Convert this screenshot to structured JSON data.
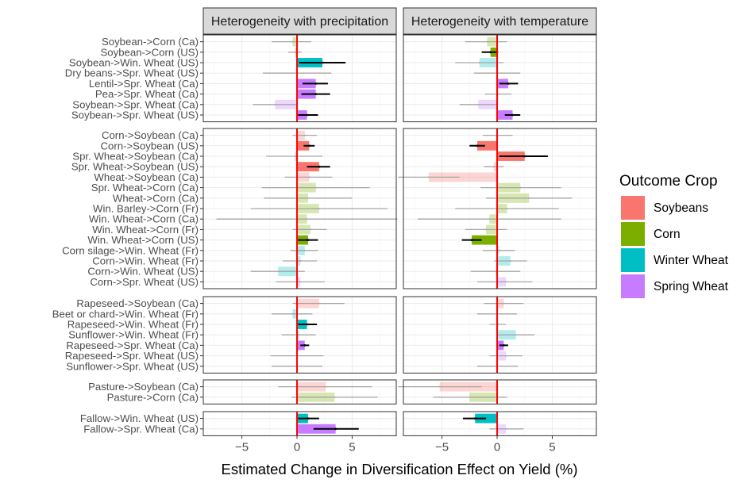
{
  "chart_data": {
    "type": "bar",
    "orientation": "horizontal",
    "facets": [
      "Heterogeneity with precipitation",
      "Heterogeneity with temperature"
    ],
    "xlabel": "Estimated Change in Diversification Effect on Yield (%)",
    "xlim": [
      -8.5,
      9.0
    ],
    "xticks": [
      -5,
      0,
      5
    ],
    "xtick_labels": [
      "−5",
      "0",
      "5"
    ],
    "reference_line_x": 0,
    "grid": true,
    "legend": {
      "title": "Outcome Crop",
      "placement": "right",
      "items": [
        {
          "label": "Soybeans",
          "color": "#F8766D"
        },
        {
          "label": "Corn",
          "color": "#7CAE00"
        },
        {
          "label": "Winter Wheat",
          "color": "#00BFC4"
        },
        {
          "label": "Spring Wheat",
          "color": "#C77CFF"
        }
      ]
    },
    "groups": [
      {
        "rows": [
          {
            "label": "Soybean->Corn (Ca)",
            "crop": "Corn",
            "precip": {
              "v": -0.4,
              "lo": -2.3,
              "hi": 1.3,
              "sig": false
            },
            "temp": {
              "v": -0.9,
              "lo": -2.9,
              "hi": 0.9,
              "sig": false
            }
          },
          {
            "label": "Soybean->Corn (US)",
            "crop": "Corn",
            "precip": {
              "v": -0.2,
              "lo": -0.8,
              "hi": 0.4,
              "sig": false
            },
            "temp": {
              "v": -0.6,
              "lo": -1.4,
              "hi": 0.1,
              "sig": true
            }
          },
          {
            "label": "Soybean->Win. Wheat (US)",
            "crop": "Winter Wheat",
            "precip": {
              "v": 2.3,
              "lo": 0.2,
              "hi": 4.4,
              "sig": true
            },
            "temp": {
              "v": -1.6,
              "lo": -3.8,
              "hi": 0.6,
              "sig": false
            }
          },
          {
            "label": "Dry beans->Spr. Wheat (US)",
            "crop": "Spring Wheat",
            "precip": {
              "v": 0.0,
              "lo": -3.1,
              "hi": 3.1,
              "sig": false
            },
            "temp": {
              "v": 0.0,
              "lo": -2.1,
              "hi": 2.1,
              "sig": false
            }
          },
          {
            "label": "Lentil->Spr. Wheat (Ca)",
            "crop": "Spring Wheat",
            "precip": {
              "v": 1.7,
              "lo": 0.5,
              "hi": 2.8,
              "sig": true
            },
            "temp": {
              "v": 1.0,
              "lo": 0.2,
              "hi": 1.9,
              "sig": true
            }
          },
          {
            "label": "Pea->Spr. Wheat (Ca)",
            "crop": "Spring Wheat",
            "precip": {
              "v": 1.7,
              "lo": 0.4,
              "hi": 3.0,
              "sig": true
            },
            "temp": {
              "v": 0.1,
              "lo": -1.1,
              "hi": 1.3,
              "sig": false
            }
          },
          {
            "label": "Soybean->Spr. Wheat (Ca)",
            "crop": "Spring Wheat",
            "precip": {
              "v": -2.0,
              "lo": -4.0,
              "hi": 0.0,
              "sig": false
            },
            "temp": {
              "v": -1.7,
              "lo": -3.4,
              "hi": 0.0,
              "sig": false
            }
          },
          {
            "label": "Soybean->Spr. Wheat (US)",
            "crop": "Spring Wheat",
            "precip": {
              "v": 0.9,
              "lo": 0.1,
              "hi": 1.9,
              "sig": true
            },
            "temp": {
              "v": 1.4,
              "lo": 0.7,
              "hi": 2.1,
              "sig": true
            }
          }
        ]
      },
      {
        "rows": [
          {
            "label": "Corn->Soybean (Ca)",
            "crop": "Soybeans",
            "precip": {
              "v": 0.7,
              "lo": -0.4,
              "hi": 1.8,
              "sig": false
            },
            "temp": {
              "v": 0.0,
              "lo": -1.3,
              "hi": 1.4,
              "sig": false
            }
          },
          {
            "label": "Corn->Soybean (US)",
            "crop": "Soybeans",
            "precip": {
              "v": 1.1,
              "lo": 0.6,
              "hi": 1.6,
              "sig": true
            },
            "temp": {
              "v": -1.8,
              "lo": -2.5,
              "hi": -1.1,
              "sig": true
            }
          },
          {
            "label": "Spr. Wheat->Soybean (Ca)",
            "crop": "Soybeans",
            "precip": {
              "v": -0.2,
              "lo": -2.8,
              "hi": 2.3,
              "sig": false
            },
            "temp": {
              "v": 2.5,
              "lo": 0.2,
              "hi": 4.6,
              "sig": true
            }
          },
          {
            "label": "Spr. Wheat->Soybean (US)",
            "crop": "Soybeans",
            "precip": {
              "v": 2.0,
              "lo": 0.9,
              "hi": 3.0,
              "sig": true
            },
            "temp": {
              "v": -0.3,
              "lo": -1.2,
              "hi": 0.6,
              "sig": false
            }
          },
          {
            "label": "Wheat->Soybean (Ca)",
            "crop": "Soybeans",
            "precip": {
              "v": 1.1,
              "lo": -1.1,
              "hi": 3.2,
              "sig": false
            },
            "temp": {
              "v": -6.2,
              "lo": -9.0,
              "hi": -3.4,
              "sig": false
            }
          },
          {
            "label": "Spr. Wheat->Corn (Ca)",
            "crop": "Corn",
            "precip": {
              "v": 1.7,
              "lo": -3.2,
              "hi": 6.6,
              "sig": false
            },
            "temp": {
              "v": 2.1,
              "lo": -1.5,
              "hi": 5.8,
              "sig": false
            }
          },
          {
            "label": "Wheat->Corn (Ca)",
            "crop": "Corn",
            "precip": {
              "v": 1.0,
              "lo": -3.0,
              "hi": 5.0,
              "sig": false
            },
            "temp": {
              "v": 2.9,
              "lo": -1.0,
              "hi": 6.8,
              "sig": false
            }
          },
          {
            "label": "Win. Barley->Corn (Fr)",
            "crop": "Corn",
            "precip": {
              "v": 2.0,
              "lo": -4.2,
              "hi": 8.2,
              "sig": false
            },
            "temp": {
              "v": 0.9,
              "lo": -3.8,
              "hi": 5.6,
              "sig": false
            }
          },
          {
            "label": "Win. Wheat->Corn (Ca)",
            "crop": "Corn",
            "precip": {
              "v": 0.9,
              "lo": -7.3,
              "hi": 9.1,
              "sig": false
            },
            "temp": {
              "v": -0.7,
              "lo": -7.2,
              "hi": 5.8,
              "sig": false
            }
          },
          {
            "label": "Win. Wheat->Corn (Fr)",
            "crop": "Corn",
            "precip": {
              "v": 1.2,
              "lo": -0.4,
              "hi": 2.7,
              "sig": false
            },
            "temp": {
              "v": -1.0,
              "lo": -2.9,
              "hi": 0.9,
              "sig": false
            }
          },
          {
            "label": "Win. Wheat->Corn (US)",
            "crop": "Corn",
            "precip": {
              "v": 1.0,
              "lo": 0.1,
              "hi": 1.9,
              "sig": true
            },
            "temp": {
              "v": -2.3,
              "lo": -3.2,
              "hi": -1.4,
              "sig": true
            }
          },
          {
            "label": "Corn silage->Win. Wheat (Fr)",
            "crop": "Winter Wheat",
            "precip": {
              "v": 0.7,
              "lo": -0.6,
              "hi": 1.9,
              "sig": false
            },
            "temp": {
              "v": 0.2,
              "lo": -1.3,
              "hi": 1.6,
              "sig": false
            }
          },
          {
            "label": "Corn->Win. Wheat (Fr)",
            "crop": "Winter Wheat",
            "precip": {
              "v": 0.3,
              "lo": -1.3,
              "hi": 1.8,
              "sig": false
            },
            "temp": {
              "v": 1.2,
              "lo": -0.3,
              "hi": 2.7,
              "sig": false
            }
          },
          {
            "label": "Corn->Win. Wheat (US)",
            "crop": "Winter Wheat",
            "precip": {
              "v": -1.7,
              "lo": -4.2,
              "hi": 0.7,
              "sig": false
            },
            "temp": {
              "v": -0.1,
              "lo": -2.4,
              "hi": 2.1,
              "sig": false
            }
          },
          {
            "label": "Corn->Spr. Wheat (US)",
            "crop": "Spring Wheat",
            "precip": {
              "v": 0.3,
              "lo": -1.9,
              "hi": 2.5,
              "sig": false
            },
            "temp": {
              "v": 0.8,
              "lo": -1.8,
              "hi": 3.2,
              "sig": false
            }
          }
        ]
      },
      {
        "rows": [
          {
            "label": "Rapeseed->Soybean (Ca)",
            "crop": "Soybeans",
            "precip": {
              "v": 2.0,
              "lo": -0.4,
              "hi": 4.3,
              "sig": false
            },
            "temp": {
              "v": 0.6,
              "lo": -1.2,
              "hi": 2.4,
              "sig": false
            }
          },
          {
            "label": "Beet or chard->Win. Wheat (Fr)",
            "crop": "Winter Wheat",
            "precip": {
              "v": -0.4,
              "lo": -2.3,
              "hi": 1.4,
              "sig": false
            },
            "temp": {
              "v": 0.0,
              "lo": -1.8,
              "hi": 1.8,
              "sig": false
            }
          },
          {
            "label": "Rapeseed->Win. Wheat (Fr)",
            "crop": "Winter Wheat",
            "precip": {
              "v": 0.9,
              "lo": 0.1,
              "hi": 1.8,
              "sig": true
            },
            "temp": {
              "v": 0.1,
              "lo": -0.7,
              "hi": 0.8,
              "sig": false
            }
          },
          {
            "label": "Sunflower->Win. Wheat (Fr)",
            "crop": "Winter Wheat",
            "precip": {
              "v": 0.2,
              "lo": -1.4,
              "hi": 1.7,
              "sig": false
            },
            "temp": {
              "v": 1.7,
              "lo": 0.1,
              "hi": 3.4,
              "sig": false
            }
          },
          {
            "label": "Rapeseed->Spr. Wheat (Ca)",
            "crop": "Spring Wheat",
            "precip": {
              "v": 0.7,
              "lo": 0.3,
              "hi": 1.1,
              "sig": true
            },
            "temp": {
              "v": 0.6,
              "lo": 0.2,
              "hi": 1.0,
              "sig": true
            }
          },
          {
            "label": "Rapeseed->Spr. Wheat (US)",
            "crop": "Spring Wheat",
            "precip": {
              "v": 0.0,
              "lo": -2.4,
              "hi": 2.4,
              "sig": false
            },
            "temp": {
              "v": 0.8,
              "lo": -0.7,
              "hi": 2.3,
              "sig": false
            }
          },
          {
            "label": "Sunflower->Spr. Wheat (US)",
            "crop": "Spring Wheat",
            "precip": {
              "v": 0.0,
              "lo": -2.3,
              "hi": 2.3,
              "sig": false
            },
            "temp": {
              "v": 0.0,
              "lo": -1.8,
              "hi": 1.9,
              "sig": false
            }
          }
        ]
      },
      {
        "rows": [
          {
            "label": "Pasture->Soybean (Ca)",
            "crop": "Soybeans",
            "precip": {
              "v": 2.6,
              "lo": -1.7,
              "hi": 6.8,
              "sig": false
            },
            "temp": {
              "v": -5.2,
              "lo": -9.0,
              "hi": -1.4,
              "sig": false
            }
          },
          {
            "label": "Pasture->Corn (Ca)",
            "crop": "Corn",
            "precip": {
              "v": 3.4,
              "lo": -0.5,
              "hi": 7.3,
              "sig": false
            },
            "temp": {
              "v": -2.5,
              "lo": -5.8,
              "hi": 0.9,
              "sig": false
            }
          }
        ]
      },
      {
        "rows": [
          {
            "label": "Fallow->Win. Wheat (US)",
            "crop": "Winter Wheat",
            "precip": {
              "v": 1.0,
              "lo": 0.1,
              "hi": 2.0,
              "sig": true
            },
            "temp": {
              "v": -2.0,
              "lo": -3.1,
              "hi": -1.0,
              "sig": true
            }
          },
          {
            "label": "Fallow->Spr. Wheat (Ca)",
            "crop": "Spring Wheat",
            "precip": {
              "v": 3.5,
              "lo": 1.5,
              "hi": 5.6,
              "sig": true
            },
            "temp": {
              "v": 0.8,
              "lo": -0.7,
              "hi": 2.4,
              "sig": false
            }
          }
        ]
      }
    ]
  }
}
